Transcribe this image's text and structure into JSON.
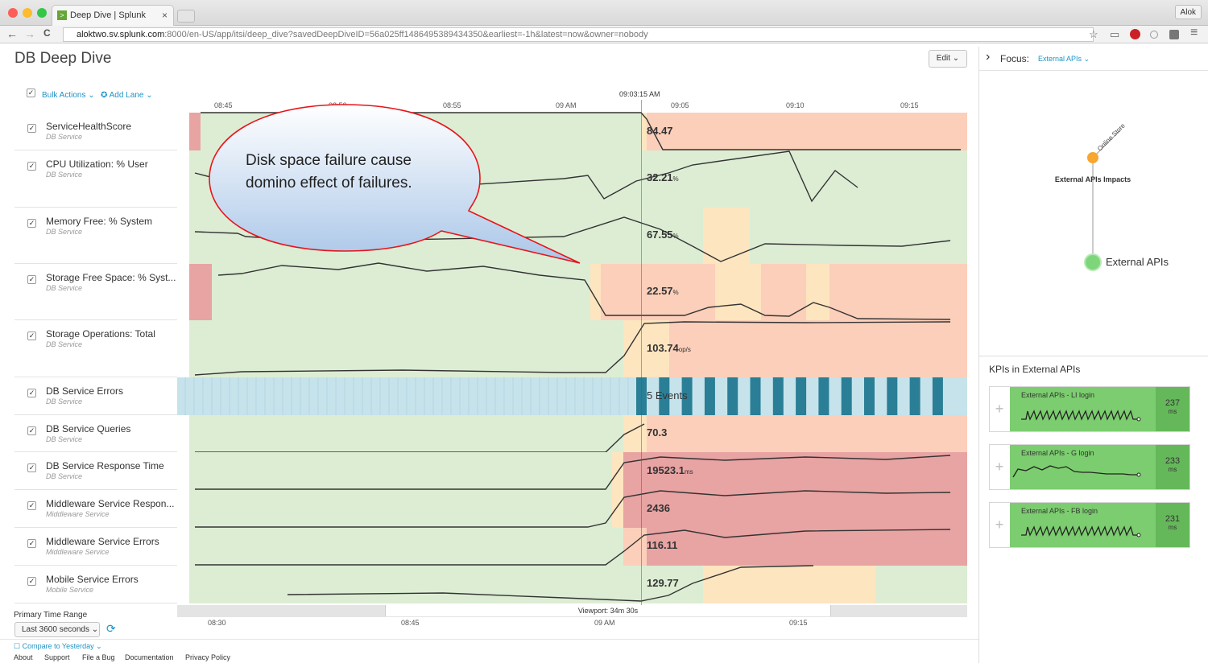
{
  "browser": {
    "tab_title": "Deep Dive | Splunk",
    "tab_close": "×",
    "favicon": ">",
    "profile": "Alok",
    "url_host": "aloktwo.sv.splunk.com",
    "url_rest": ":8000/en-US/app/itsi/deep_dive?savedDeepDiveID=56a025ff1486495389434350&earliest=-1h&latest=now&owner=nobody",
    "back_icon": "←",
    "forward_icon": "→",
    "reload_icon": "C",
    "star_icon": "☆",
    "cast_icon": "▭",
    "menu_icon": "≡"
  },
  "page": {
    "title": "DB Deep Dive",
    "edit_label": "Edit ⌄"
  },
  "toolbar": {
    "select_all": "✓",
    "bulk_actions": "Bulk Actions ⌄",
    "add_lane": "✪ Add Lane ⌄"
  },
  "timeline": {
    "ticks": [
      "08:45",
      "08:50",
      "08:55",
      "09 AM",
      "09:05",
      "09:10",
      "09:15"
    ],
    "cursor_time": "09:03:15 AM"
  },
  "lanes": [
    {
      "name": "ServiceHealthScore",
      "service": "DB Service",
      "value": "84.47",
      "unit": ""
    },
    {
      "name": "CPU Utilization: % User",
      "service": "DB Service",
      "value": "32.21",
      "unit": "%"
    },
    {
      "name": "Memory Free: % System",
      "service": "DB Service",
      "value": "67.55",
      "unit": "%"
    },
    {
      "name": "Storage Free Space: % Syst...",
      "service": "DB Service",
      "value": "22.57",
      "unit": "%"
    },
    {
      "name": "Storage Operations: Total",
      "service": "DB Service",
      "value": "103.74",
      "unit": "op/s"
    },
    {
      "name": "DB Service Errors",
      "service": "DB Service",
      "value": "5 Events",
      "unit": ""
    },
    {
      "name": "DB Service Queries",
      "service": "DB Service",
      "value": "70.3",
      "unit": ""
    },
    {
      "name": "DB Service Response Time",
      "service": "DB Service",
      "value": "19523.1",
      "unit": "ms"
    },
    {
      "name": "Middleware Service Respon...",
      "service": "Middleware Service",
      "value": "2436",
      "unit": ""
    },
    {
      "name": "Middleware Service Errors",
      "service": "Middleware Service",
      "value": "116.11",
      "unit": ""
    },
    {
      "name": "Mobile Service Errors",
      "service": "Mobile Service",
      "value": "129.77",
      "unit": ""
    }
  ],
  "callout": {
    "text": "Disk space failure cause domino effect of failures."
  },
  "bottom": {
    "primary_time_range_label": "Primary Time Range",
    "time_range_value": "Last 3600 seconds ⌄",
    "refresh_icon": "⟳",
    "viewport": "Viewport: 34m 30s",
    "ticks": [
      "08:30",
      "08:45",
      "09 AM",
      "09:15"
    ],
    "compare": "☐ Compare to Yesterday ⌄"
  },
  "footer": [
    "About",
    "Support",
    "File a Bug",
    "Documentation",
    "Privacy Policy"
  ],
  "right_panel": {
    "chevron": "›",
    "focus_label": "Focus:",
    "focus_value": "External APIs ⌄",
    "graph": {
      "upstream_node": "Online Store",
      "impacts_label": "External APIs Impacts",
      "node_label": "External APIs"
    },
    "kpi_heading": "KPIs in External APIs",
    "kpis": [
      {
        "title": "External APIs - LI login",
        "value": "237",
        "unit": "ms"
      },
      {
        "title": "External APIs - G login",
        "value": "233",
        "unit": "ms"
      },
      {
        "title": "External APIs - FB login",
        "value": "231",
        "unit": "ms"
      }
    ]
  },
  "colors": {
    "normal": "#dcedd4",
    "warning": "#fde5c0",
    "critical": "#fbcfba",
    "severe": "#e8a3a3",
    "events": "#c6e3ec",
    "event_bar": "#2a7f96",
    "link": "#1e93c6"
  }
}
